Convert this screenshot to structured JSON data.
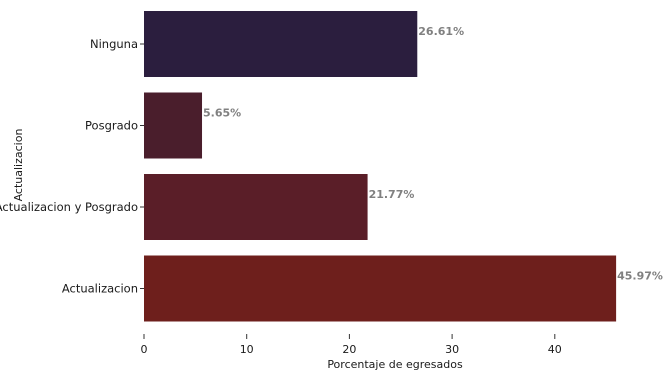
{
  "chart_data": {
    "type": "bar",
    "orientation": "horizontal",
    "categories": [
      "Ninguna",
      "Posgrado",
      "Actualizacion y Posgrado",
      "Actualizacion"
    ],
    "values": [
      26.61,
      5.65,
      21.77,
      45.97
    ],
    "value_labels": [
      "26.61%",
      "5.65%",
      "21.77%",
      "45.97%"
    ],
    "colors": [
      "#2b1e3e",
      "#4a1e2c",
      "#5a1e28",
      "#6e1f1c"
    ],
    "xlabel": "Porcentaje de egresados",
    "ylabel": "Actualizacion",
    "xlim": [
      0,
      46
    ],
    "xticks": [
      0,
      10,
      20,
      30,
      40
    ],
    "grid": false,
    "legend": "none"
  }
}
